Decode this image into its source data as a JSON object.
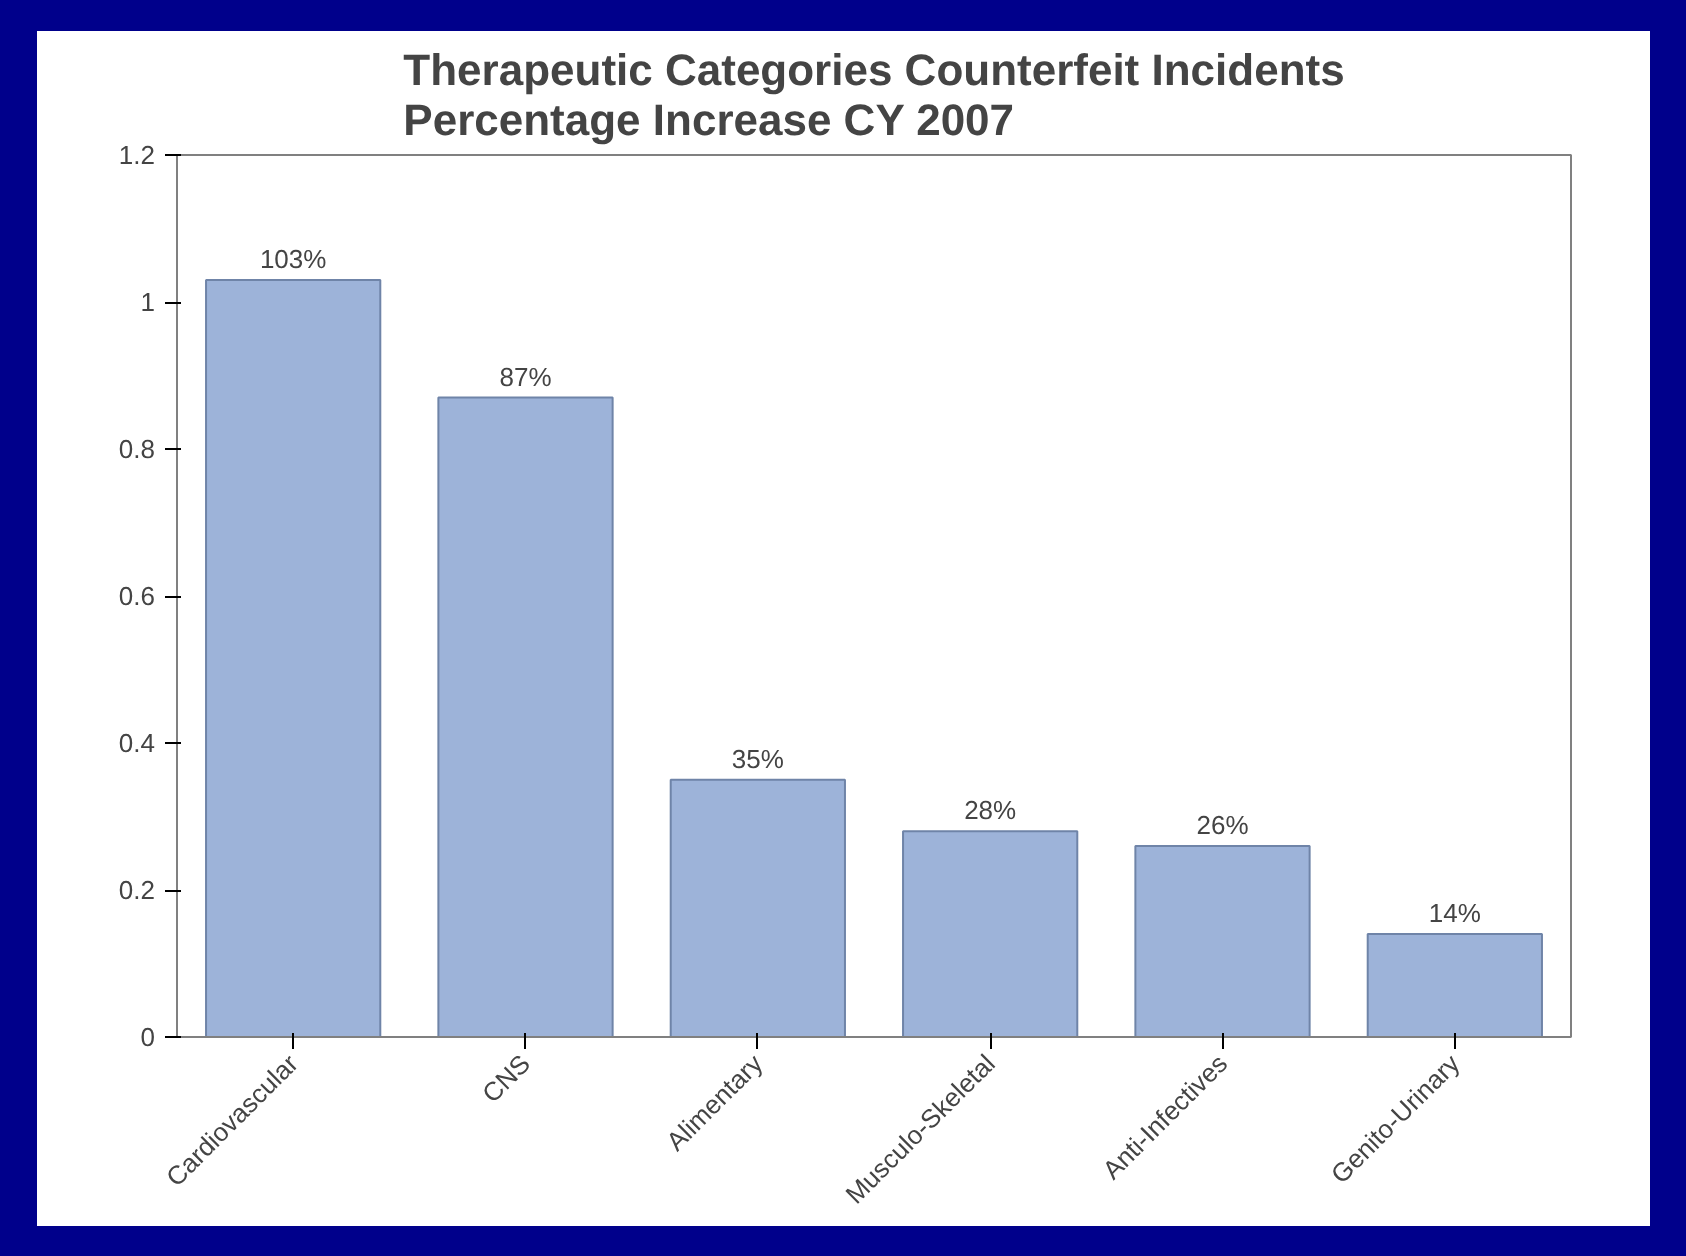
{
  "chart_data": {
    "type": "bar",
    "title": "Therapeutic Categories Counterfeit Incidents\nPercentage Increase CY 2007",
    "categories": [
      "Cardiovascular",
      "CNS",
      "Alimentary",
      "Musculo-Skeletal",
      "Anti-Infectives",
      "Genito-Urinary"
    ],
    "values": [
      1.03,
      0.87,
      0.35,
      0.28,
      0.26,
      0.14
    ],
    "value_labels": [
      "103%",
      "87%",
      "35%",
      "28%",
      "26%",
      "14%"
    ],
    "color": "#9db3d9",
    "ylim": [
      0,
      1.2
    ],
    "yticks": [
      0,
      0.2,
      0.4,
      0.6,
      0.8,
      1,
      1.2
    ],
    "grid": false
  }
}
